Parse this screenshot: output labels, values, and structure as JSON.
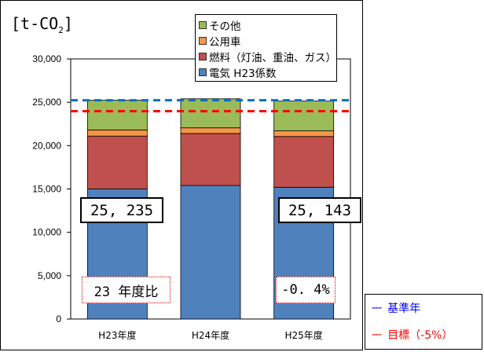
{
  "chart_data": {
    "type": "stacked-bar",
    "unit_prefix": "[t-CO",
    "unit_sub": "2",
    "unit_suffix": "]",
    "categories": [
      "H23年度",
      "H24年度",
      "H25年度"
    ],
    "ylim": [
      0,
      30000
    ],
    "yticks": [
      0,
      5000,
      10000,
      15000,
      20000,
      25000,
      30000
    ],
    "ytick_labels": [
      "0",
      "5,000",
      "10,000",
      "15,000",
      "20,000",
      "25,000",
      "30,000"
    ],
    "series": [
      {
        "name": "電気 H23係数",
        "color": "#4f81bd",
        "values": [
          15000,
          15400,
          15200
        ]
      },
      {
        "name": "燃料（灯油、重油、ガス）",
        "color": "#c0504d",
        "values": [
          6100,
          6000,
          5850
        ]
      },
      {
        "name": "公用車",
        "color": "#f79646",
        "values": [
          700,
          650,
          650
        ]
      },
      {
        "name": "その他",
        "color": "#9bbb59",
        "values": [
          3435,
          3350,
          3443
        ]
      }
    ],
    "reference_lines": [
      {
        "name": "基準年",
        "value": 25235,
        "color": "#0070c0"
      },
      {
        "name": "目標（-5%）",
        "value": 23973,
        "color": "#ff0000"
      }
    ],
    "totals": [
      {
        "category": "H23年度",
        "label": "25, 235"
      },
      {
        "category": "H25年度",
        "label": "25, 143"
      }
    ],
    "notes": [
      {
        "category": "H23年度",
        "label": "23 年度比"
      },
      {
        "category": "H25年度",
        "label": "-0. 4%"
      }
    ],
    "grid": false
  },
  "ref_legend": [
    {
      "dash": "---",
      "label": "基準年",
      "color": "#0000ff"
    },
    {
      "dash": "---",
      "label": "目標（-5%）",
      "color": "#ff0000"
    }
  ]
}
